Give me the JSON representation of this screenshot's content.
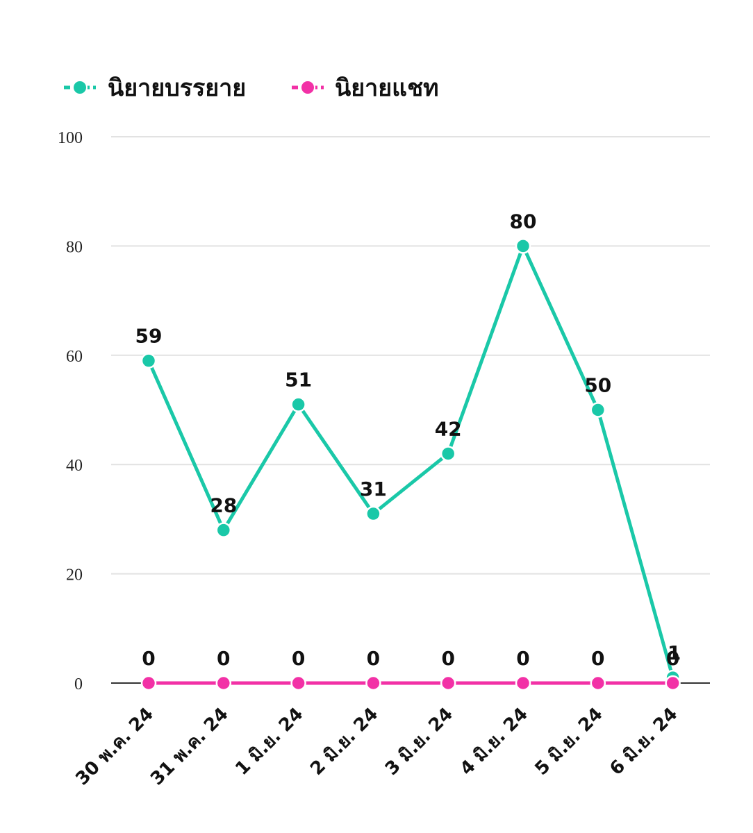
{
  "chart_data": {
    "type": "line",
    "categories": [
      "30 พ.ค. 24",
      "31 พ.ค. 24",
      "1 มิ.ย. 24",
      "2 มิ.ย. 24",
      "3 มิ.ย. 24",
      "4 มิ.ย. 24",
      "5 มิ.ย. 24",
      "6 มิ.ย. 24"
    ],
    "series": [
      {
        "name": "นิยายบรรยาย",
        "color": "#1ac8a8",
        "values": [
          59,
          28,
          51,
          31,
          42,
          80,
          50,
          1
        ]
      },
      {
        "name": "นิยายแชท",
        "color": "#f231a6",
        "values": [
          0,
          0,
          0,
          0,
          0,
          0,
          0,
          0
        ]
      }
    ],
    "y_ticks": [
      "0",
      "20",
      "40",
      "60",
      "80",
      "100"
    ],
    "ylim": [
      0,
      100
    ],
    "grid": true,
    "legend_position": "top-left",
    "data_labels": true
  }
}
